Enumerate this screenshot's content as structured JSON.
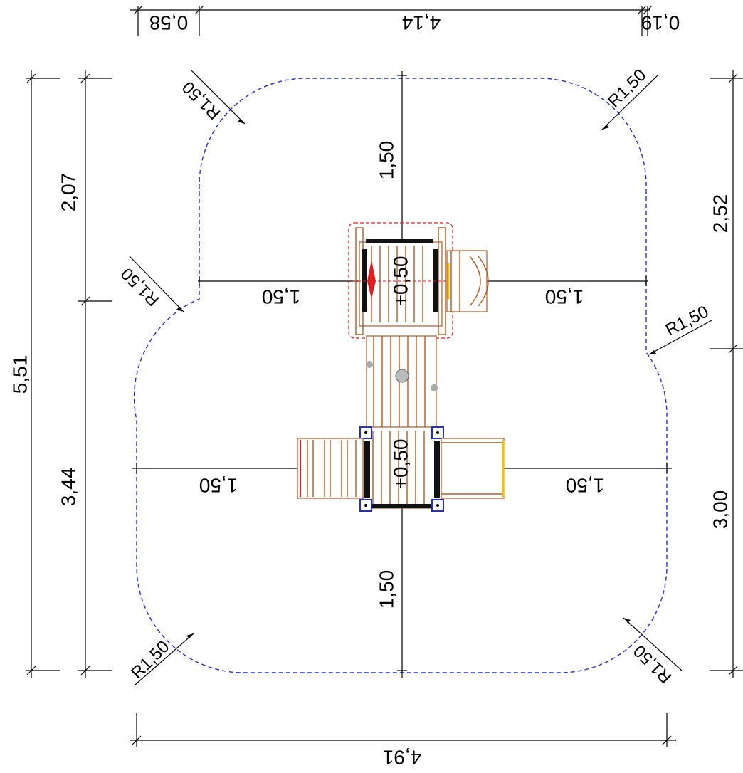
{
  "dimensions": {
    "top_left": "0,58",
    "top_middle": "4,14",
    "top_right": "0,19",
    "left_total": "5,51",
    "left_upper": "2,07",
    "left_lower": "3,44",
    "right_upper": "2,52",
    "right_lower": "3,00",
    "bottom_total": "4,91",
    "upper_vertical": "1,50",
    "lower_vertical": "1,50",
    "upper_left_offset": "1,50",
    "upper_right_offset": "1,50",
    "lower_left_offset": "1,50",
    "lower_right_offset": "1,50",
    "upper_platform_height": "+0,50",
    "lower_platform_height": "+0,50"
  },
  "radii": {
    "top_left": "R1,50",
    "top_right": "R1,50",
    "mid_left": "R1,50",
    "mid_right": "R1,50",
    "bottom_left": "R1,50",
    "bottom_right": "R1,50"
  },
  "colors": {
    "safety_zone": "#1f2fd6",
    "wood": "#b5581c",
    "upper_platform_outline": "#e02020",
    "slide_yellow": "#f2c200"
  }
}
